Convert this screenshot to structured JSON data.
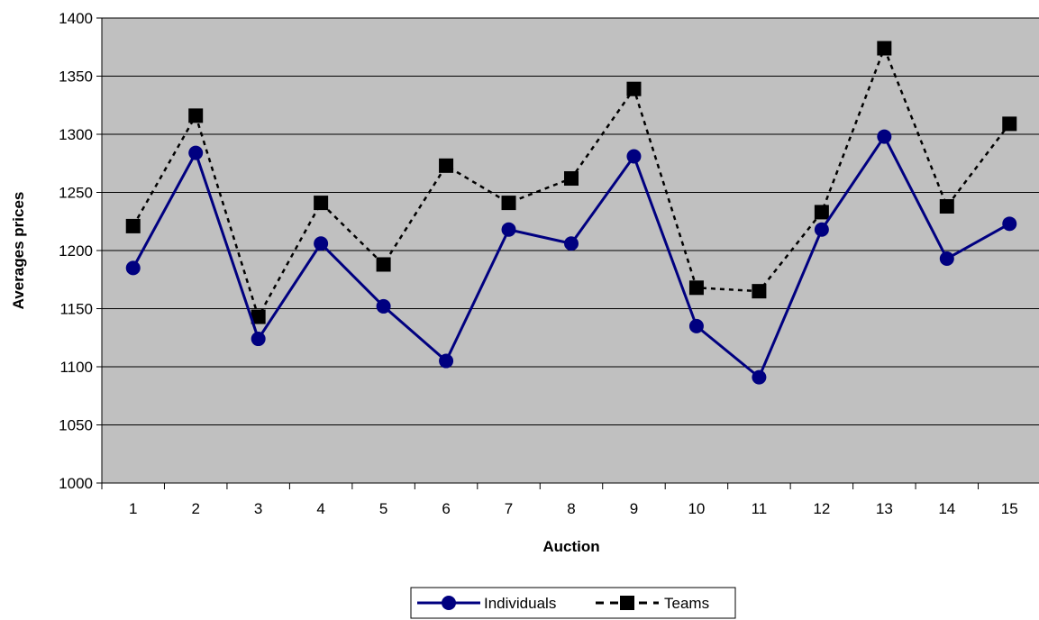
{
  "chart_data": {
    "type": "line",
    "title": "",
    "xlabel": "Auction",
    "ylabel": "Averages prices",
    "categories": [
      "1",
      "2",
      "3",
      "4",
      "5",
      "6",
      "7",
      "8",
      "9",
      "10",
      "11",
      "12",
      "13",
      "14",
      "15"
    ],
    "ylim": [
      1000,
      1400
    ],
    "yticks": [
      1000,
      1050,
      1100,
      1150,
      1200,
      1250,
      1300,
      1350,
      1400
    ],
    "grid": true,
    "legend_position": "bottom",
    "plot_background": "#c0c0c0",
    "series": [
      {
        "name": "Individuals",
        "values": [
          1185,
          1284,
          1124,
          1206,
          1152,
          1105,
          1218,
          1206,
          1281,
          1135,
          1091,
          1218,
          1298,
          1193,
          1223
        ],
        "color": "#000080",
        "line_style": "solid",
        "marker": "circle"
      },
      {
        "name": "Teams",
        "values": [
          1221,
          1316,
          1143,
          1241,
          1188,
          1273,
          1241,
          1262,
          1339,
          1168,
          1165,
          1233,
          1374,
          1238,
          1309
        ],
        "color": "#000000",
        "line_style": "dashed",
        "marker": "square"
      }
    ]
  }
}
